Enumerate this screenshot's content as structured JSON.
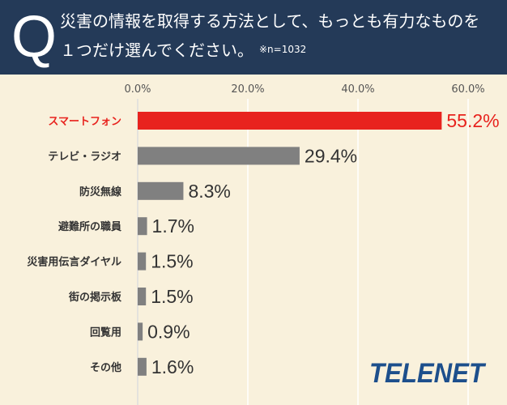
{
  "question": {
    "mark": "Q",
    "line1": "災害の情報を取得する方法として、もっとも有力なものを",
    "line2": "１つだけ選んでください。",
    "note": "※n=1032"
  },
  "logo_text": "TELENET",
  "colors": {
    "header_bg": "#243a58",
    "page_bg": "#f9f1dc",
    "highlight": "#e8231e",
    "bar": "#808080",
    "logo": "#1d4f8c"
  },
  "chart_data": {
    "type": "bar",
    "orientation": "horizontal",
    "categories": [
      "スマートフォン",
      "テレビ・ラジオ",
      "防災無線",
      "避難所の職員",
      "災害用伝言ダイヤル",
      "街の掲示板",
      "回覧用",
      "その他"
    ],
    "values": [
      55.2,
      29.4,
      8.3,
      1.7,
      1.5,
      1.5,
      0.9,
      1.6
    ],
    "value_labels": [
      "55.2%",
      "29.4%",
      "8.3%",
      "1.7%",
      "1.5%",
      "1.5%",
      "0.9%",
      "1.6%"
    ],
    "xlim": [
      0,
      60
    ],
    "ticks": [
      0,
      20,
      40,
      60
    ],
    "tick_labels": [
      "0.0%",
      "20.0%",
      "40.0%",
      "60.0%"
    ],
    "highlight_index": 0,
    "grid": true
  }
}
